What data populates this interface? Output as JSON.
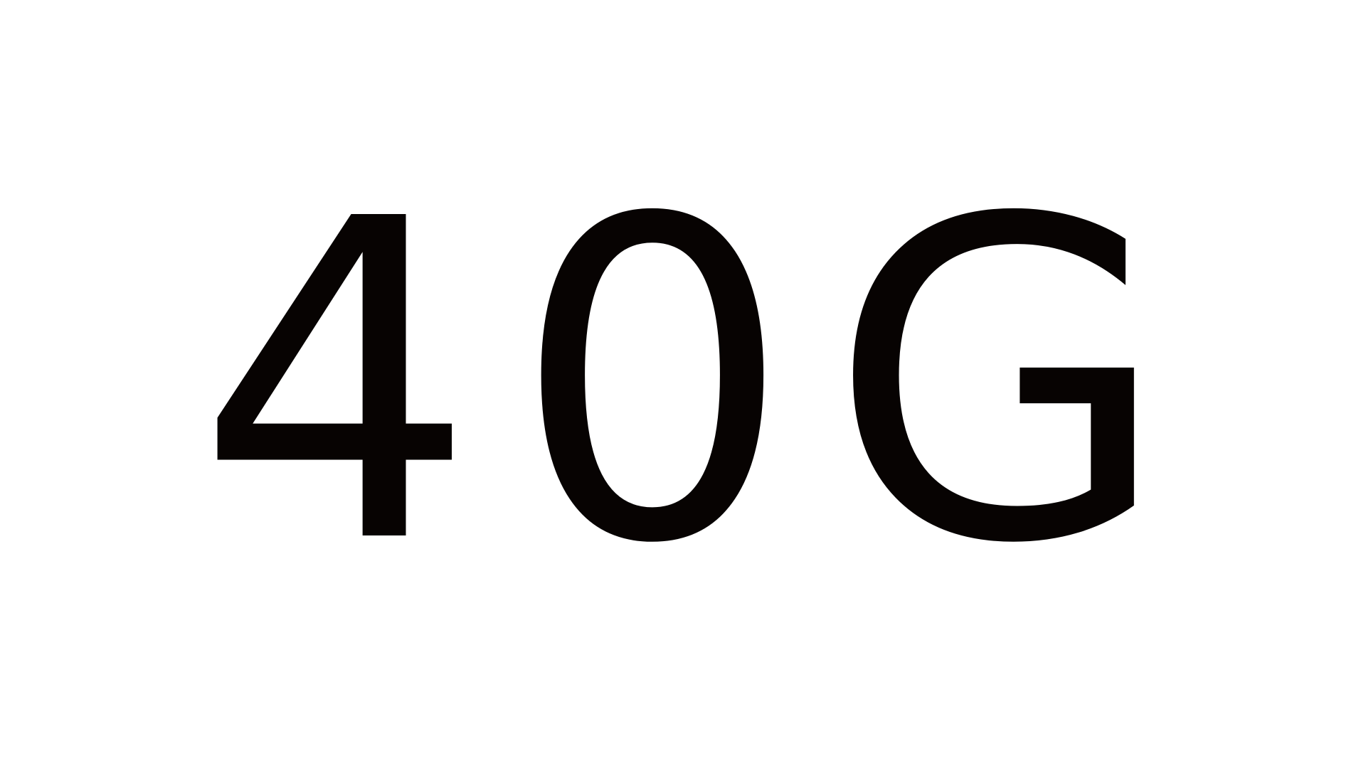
{
  "display": {
    "text": "40G",
    "color": "#070302",
    "background": "#ffffff"
  }
}
